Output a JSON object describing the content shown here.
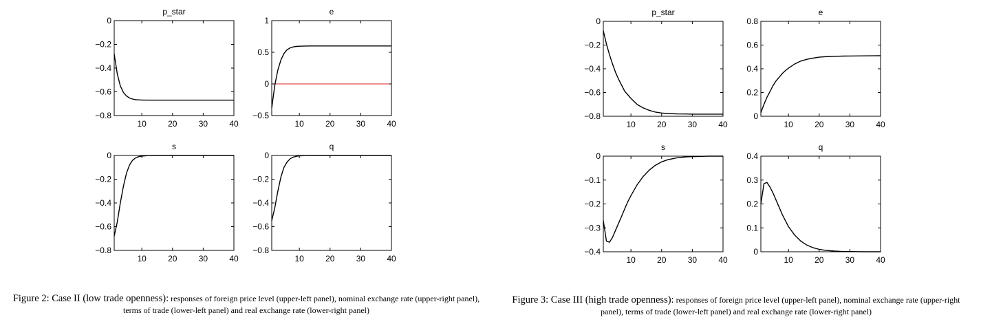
{
  "figures": [
    {
      "caption_lead": "Figure 2: Case II (low trade openness):",
      "caption_text": "responses of foreign price level (upper-left panel), nominal exchange rate (upper-right panel), terms of trade (lower-left panel) and real exchange rate (lower-right panel)"
    },
    {
      "caption_lead": "Figure 3: Case III (high trade openness):",
      "caption_text": "responses of foreign price level (upper-left panel), nominal exchange rate (upper-right panel), terms of trade (lower-left panel) and real exchange rate (lower-right panel)"
    }
  ],
  "colors": {
    "series": "#000000",
    "zero_line": "#e02020",
    "axes": "#000000"
  },
  "chart_data": [
    {
      "figure": 2,
      "panel": "upper-left",
      "type": "line",
      "title": "p_star",
      "xlim": [
        1,
        40
      ],
      "ylim": [
        -0.8,
        0
      ],
      "xticks": [
        10,
        20,
        30,
        40
      ],
      "yticks": [
        0,
        -0.2,
        -0.4,
        -0.6,
        -0.8
      ],
      "ytick_labels": [
        "0",
        "−0.2",
        "−0.4",
        "−0.6",
        "−0.8"
      ],
      "zero_line": 0,
      "x": [
        1,
        2,
        3,
        4,
        5,
        6,
        7,
        8,
        9,
        10,
        12,
        14,
        16,
        18,
        20,
        25,
        30,
        35,
        40
      ],
      "y": [
        -0.28,
        -0.45,
        -0.55,
        -0.605,
        -0.635,
        -0.652,
        -0.661,
        -0.666,
        -0.668,
        -0.669,
        -0.67,
        -0.67,
        -0.67,
        -0.67,
        -0.67,
        -0.67,
        -0.67,
        -0.67,
        -0.67
      ]
    },
    {
      "figure": 2,
      "panel": "upper-right",
      "type": "line",
      "title": "e",
      "xlim": [
        1,
        40
      ],
      "ylim": [
        -0.5,
        1
      ],
      "xticks": [
        10,
        20,
        30,
        40
      ],
      "yticks": [
        1,
        0.5,
        0,
        -0.5
      ],
      "ytick_labels": [
        "1",
        "0.5",
        "0",
        "−0.5"
      ],
      "zero_line": 0,
      "x": [
        1,
        2,
        3,
        4,
        5,
        6,
        7,
        8,
        9,
        10,
        12,
        14,
        16,
        18,
        20,
        25,
        30,
        35,
        40
      ],
      "y": [
        -0.38,
        -0.02,
        0.22,
        0.38,
        0.48,
        0.54,
        0.57,
        0.585,
        0.592,
        0.596,
        0.599,
        0.6,
        0.6,
        0.6,
        0.6,
        0.6,
        0.6,
        0.6,
        0.6
      ]
    },
    {
      "figure": 2,
      "panel": "lower-left",
      "type": "line",
      "title": "s",
      "xlim": [
        1,
        40
      ],
      "ylim": [
        -0.8,
        0
      ],
      "xticks": [
        10,
        20,
        30,
        40
      ],
      "yticks": [
        0,
        -0.2,
        -0.4,
        -0.6,
        -0.8
      ],
      "ytick_labels": [
        "0",
        "−0.2",
        "−0.4",
        "−0.6",
        "−0.8"
      ],
      "zero_line": 0,
      "x": [
        1,
        2,
        3,
        4,
        5,
        6,
        7,
        8,
        9,
        10,
        12,
        14,
        16,
        18,
        20,
        25,
        30,
        35,
        40
      ],
      "y": [
        -0.68,
        -0.56,
        -0.4,
        -0.26,
        -0.15,
        -0.08,
        -0.04,
        -0.02,
        -0.01,
        -0.005,
        -0.001,
        0,
        0,
        0,
        0,
        0,
        0,
        0,
        0
      ]
    },
    {
      "figure": 2,
      "panel": "lower-right",
      "type": "line",
      "title": "q",
      "xlim": [
        1,
        40
      ],
      "ylim": [
        -0.8,
        0
      ],
      "xticks": [
        10,
        20,
        30,
        40
      ],
      "yticks": [
        0,
        -0.2,
        -0.4,
        -0.6,
        -0.8
      ],
      "ytick_labels": [
        "0",
        "−0.2",
        "−0.4",
        "−0.6",
        "−0.8"
      ],
      "zero_line": 0,
      "x": [
        1,
        2,
        3,
        4,
        5,
        6,
        7,
        8,
        9,
        10,
        12,
        14,
        16,
        18,
        20,
        25,
        30,
        35,
        40
      ],
      "y": [
        -0.55,
        -0.44,
        -0.3,
        -0.18,
        -0.1,
        -0.055,
        -0.028,
        -0.014,
        -0.007,
        -0.003,
        -0.001,
        0,
        0,
        0,
        0,
        0,
        0,
        0,
        0
      ]
    },
    {
      "figure": 3,
      "panel": "upper-left",
      "type": "line",
      "title": "p_star",
      "xlim": [
        1,
        40
      ],
      "ylim": [
        -0.8,
        0
      ],
      "xticks": [
        10,
        20,
        30,
        40
      ],
      "yticks": [
        0,
        -0.2,
        -0.4,
        -0.6,
        -0.8
      ],
      "ytick_labels": [
        "0",
        "−0.2",
        "−0.4",
        "−0.6",
        "−0.8"
      ],
      "zero_line": 0,
      "x": [
        1,
        2,
        3,
        4,
        5,
        6,
        7,
        8,
        9,
        10,
        12,
        14,
        16,
        18,
        20,
        22,
        25,
        28,
        30,
        35,
        40
      ],
      "y": [
        -0.08,
        -0.19,
        -0.28,
        -0.36,
        -0.43,
        -0.49,
        -0.54,
        -0.59,
        -0.62,
        -0.65,
        -0.7,
        -0.73,
        -0.75,
        -0.765,
        -0.773,
        -0.777,
        -0.78,
        -0.781,
        -0.782,
        -0.782,
        -0.782
      ]
    },
    {
      "figure": 3,
      "panel": "upper-right",
      "type": "line",
      "title": "e",
      "xlim": [
        1,
        40
      ],
      "ylim": [
        0,
        0.8
      ],
      "xticks": [
        10,
        20,
        30,
        40
      ],
      "yticks": [
        0.8,
        0.6,
        0.4,
        0.2,
        0
      ],
      "ytick_labels": [
        "0.8",
        "0.6",
        "0.4",
        "0.2",
        "0"
      ],
      "zero_line": 0,
      "x": [
        1,
        2,
        3,
        4,
        5,
        6,
        7,
        8,
        9,
        10,
        12,
        14,
        16,
        18,
        20,
        22,
        25,
        28,
        30,
        35,
        40
      ],
      "y": [
        0.03,
        0.1,
        0.16,
        0.21,
        0.26,
        0.3,
        0.33,
        0.36,
        0.385,
        0.405,
        0.44,
        0.465,
        0.48,
        0.49,
        0.498,
        0.502,
        0.505,
        0.507,
        0.508,
        0.509,
        0.51
      ]
    },
    {
      "figure": 3,
      "panel": "lower-left",
      "type": "line",
      "title": "s",
      "xlim": [
        1,
        40
      ],
      "ylim": [
        -0.4,
        0
      ],
      "xticks": [
        10,
        20,
        30,
        40
      ],
      "yticks": [
        0,
        -0.1,
        -0.2,
        -0.3,
        -0.4
      ],
      "ytick_labels": [
        "0",
        "−0.1",
        "−0.2",
        "−0.3",
        "−0.4"
      ],
      "zero_line": 0,
      "x": [
        1,
        2,
        3,
        4,
        5,
        6,
        7,
        8,
        9,
        10,
        12,
        14,
        16,
        18,
        20,
        22,
        25,
        28,
        30,
        35,
        40
      ],
      "y": [
        -0.27,
        -0.355,
        -0.36,
        -0.34,
        -0.31,
        -0.28,
        -0.25,
        -0.22,
        -0.19,
        -0.165,
        -0.12,
        -0.085,
        -0.058,
        -0.038,
        -0.024,
        -0.015,
        -0.007,
        -0.003,
        -0.002,
        0,
        0
      ]
    },
    {
      "figure": 3,
      "panel": "lower-right",
      "type": "line",
      "title": "q",
      "xlim": [
        1,
        40
      ],
      "ylim": [
        0,
        0.4
      ],
      "xticks": [
        10,
        20,
        30,
        40
      ],
      "yticks": [
        0.4,
        0.3,
        0.2,
        0.1,
        0
      ],
      "ytick_labels": [
        "0.4",
        "0.3",
        "0.2",
        "0.1",
        "0"
      ],
      "zero_line": 0,
      "x": [
        1,
        2,
        3,
        4,
        5,
        6,
        7,
        8,
        9,
        10,
        12,
        14,
        16,
        18,
        20,
        22,
        25,
        28,
        30,
        35,
        40
      ],
      "y": [
        0.2,
        0.285,
        0.29,
        0.27,
        0.245,
        0.215,
        0.185,
        0.155,
        0.13,
        0.105,
        0.07,
        0.045,
        0.028,
        0.017,
        0.01,
        0.006,
        0.003,
        0.001,
        0.001,
        0,
        0
      ]
    }
  ]
}
